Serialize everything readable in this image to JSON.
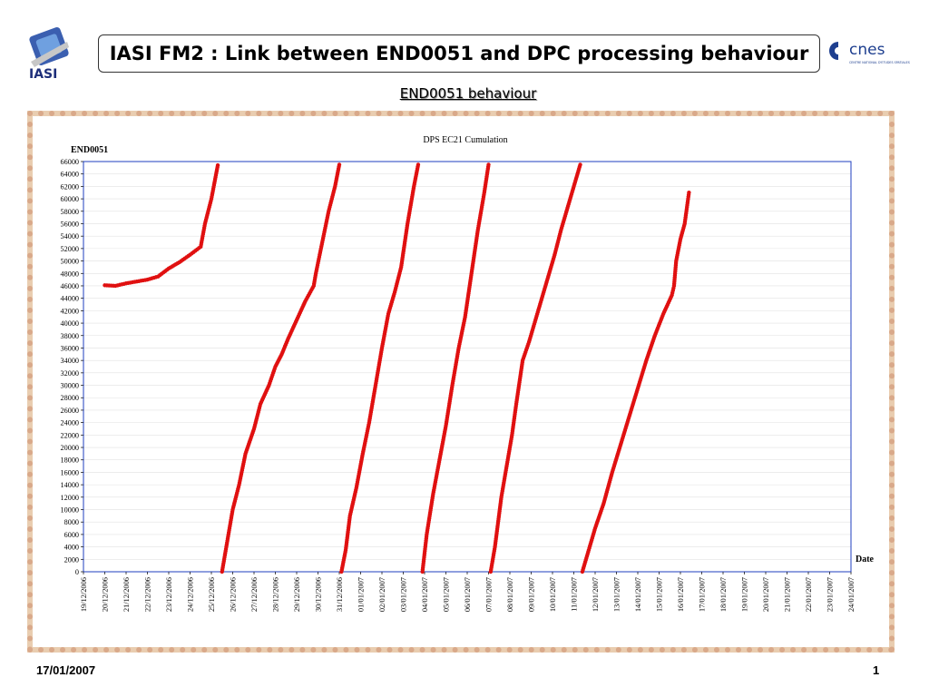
{
  "slide": {
    "title": "IASI FM2 : Link between END0051 and DPC processing behaviour",
    "subtitle": "END0051 behaviour",
    "footer_date": "17/01/2007",
    "page_number": "1",
    "logos": {
      "left": "IASI",
      "right": "cnes",
      "right_tagline": "CENTRE NATIONAL D'ETUDES SPATIALES"
    }
  },
  "chart_data": {
    "type": "scatter",
    "title": "DPS EC21 Cumulation",
    "ylabel": "END0051",
    "xlabel": "Date",
    "ylim": [
      0,
      66000
    ],
    "y_ticks": [
      0,
      2000,
      4000,
      6000,
      8000,
      10000,
      12000,
      14000,
      16000,
      18000,
      20000,
      22000,
      24000,
      26000,
      28000,
      30000,
      32000,
      34000,
      36000,
      38000,
      40000,
      42000,
      44000,
      46000,
      48000,
      50000,
      52000,
      54000,
      56000,
      58000,
      60000,
      62000,
      64000,
      66000
    ],
    "x_ticks": [
      "19/12/2006",
      "20/12/2006",
      "21/12/2006",
      "22/12/2006",
      "23/12/2006",
      "24/12/2006",
      "25/12/2006",
      "26/12/2006",
      "27/12/2006",
      "28/12/2006",
      "29/12/2006",
      "30/12/2006",
      "31/12/2006",
      "01/01/2007",
      "02/01/2007",
      "03/01/2007",
      "04/01/2007",
      "05/01/2007",
      "06/01/2007",
      "07/01/2007",
      "08/01/2007",
      "09/01/2007",
      "10/01/2007",
      "11/01/2007",
      "12/01/2007",
      "13/01/2007",
      "14/01/2007",
      "15/01/2007",
      "16/01/2007",
      "17/01/2007",
      "18/01/2007",
      "19/01/2007",
      "20/01/2007",
      "21/01/2007",
      "22/01/2007",
      "23/01/2007",
      "24/01/2007"
    ],
    "x_unit": "days after 19/12/2006",
    "grid": true,
    "marker_color": "#e01010",
    "plot_border_color": "#1f3fbf",
    "series": [
      {
        "name": "",
        "points": [
          [
            1.0,
            46100
          ],
          [
            1.5,
            46000
          ],
          [
            2.0,
            46400
          ],
          [
            2.5,
            46700
          ],
          [
            3.0,
            47000
          ],
          [
            3.5,
            47500
          ],
          [
            4.0,
            48800
          ],
          [
            4.5,
            49800
          ],
          [
            5.0,
            51000
          ],
          [
            5.5,
            52300
          ],
          [
            5.7,
            56000
          ],
          [
            6.0,
            60000
          ],
          [
            6.3,
            65400
          ]
        ]
      },
      {
        "name": "",
        "points": [
          [
            6.5,
            0
          ],
          [
            6.8,
            6000
          ],
          [
            7.0,
            10000
          ],
          [
            7.3,
            14000
          ],
          [
            7.6,
            19000
          ],
          [
            8.0,
            23000
          ],
          [
            8.3,
            27000
          ],
          [
            8.7,
            30000
          ],
          [
            9.0,
            33000
          ],
          [
            9.3,
            35000
          ],
          [
            9.6,
            37500
          ],
          [
            10.0,
            40500
          ],
          [
            10.4,
            43500
          ],
          [
            10.8,
            46000
          ],
          [
            10.9,
            48000
          ],
          [
            11.2,
            53000
          ],
          [
            11.5,
            58000
          ],
          [
            11.8,
            62000
          ],
          [
            12.0,
            65500
          ]
        ]
      },
      {
        "name": "",
        "points": [
          [
            12.1,
            0
          ],
          [
            12.3,
            3500
          ],
          [
            12.5,
            9000
          ],
          [
            12.8,
            13500
          ],
          [
            13.1,
            19000
          ],
          [
            13.4,
            24000
          ],
          [
            13.7,
            30000
          ],
          [
            14.0,
            36000
          ],
          [
            14.3,
            41500
          ],
          [
            14.6,
            45000
          ],
          [
            14.9,
            49000
          ],
          [
            15.2,
            56000
          ],
          [
            15.5,
            62000
          ],
          [
            15.7,
            65500
          ]
        ]
      },
      {
        "name": "",
        "points": [
          [
            15.9,
            0
          ],
          [
            16.1,
            6000
          ],
          [
            16.4,
            12500
          ],
          [
            16.7,
            18000
          ],
          [
            17.0,
            23500
          ],
          [
            17.3,
            30000
          ],
          [
            17.6,
            36000
          ],
          [
            17.9,
            41000
          ],
          [
            18.2,
            48000
          ],
          [
            18.5,
            55000
          ],
          [
            18.8,
            61000
          ],
          [
            19.0,
            65500
          ]
        ]
      },
      {
        "name": "",
        "points": [
          [
            19.1,
            0
          ],
          [
            19.3,
            4000
          ],
          [
            19.6,
            12000
          ],
          [
            19.9,
            18000
          ],
          [
            20.1,
            22000
          ],
          [
            20.3,
            27000
          ],
          [
            20.6,
            34000
          ],
          [
            20.9,
            37000
          ],
          [
            21.2,
            40500
          ],
          [
            21.5,
            44000
          ],
          [
            21.8,
            47500
          ],
          [
            22.1,
            51000
          ],
          [
            22.4,
            55000
          ],
          [
            22.7,
            58500
          ],
          [
            23.0,
            62000
          ],
          [
            23.3,
            65500
          ]
        ]
      },
      {
        "name": "",
        "points": [
          [
            23.4,
            0
          ],
          [
            23.7,
            3500
          ],
          [
            24.0,
            7000
          ],
          [
            24.4,
            11000
          ],
          [
            24.8,
            16000
          ],
          [
            25.2,
            20500
          ],
          [
            25.6,
            25000
          ],
          [
            26.0,
            29500
          ],
          [
            26.4,
            34000
          ],
          [
            26.8,
            38000
          ],
          [
            27.2,
            41500
          ],
          [
            27.6,
            44500
          ],
          [
            27.7,
            46000
          ],
          [
            27.8,
            50000
          ],
          [
            28.0,
            53500
          ],
          [
            28.2,
            56000
          ],
          [
            28.4,
            61000
          ]
        ]
      }
    ]
  }
}
